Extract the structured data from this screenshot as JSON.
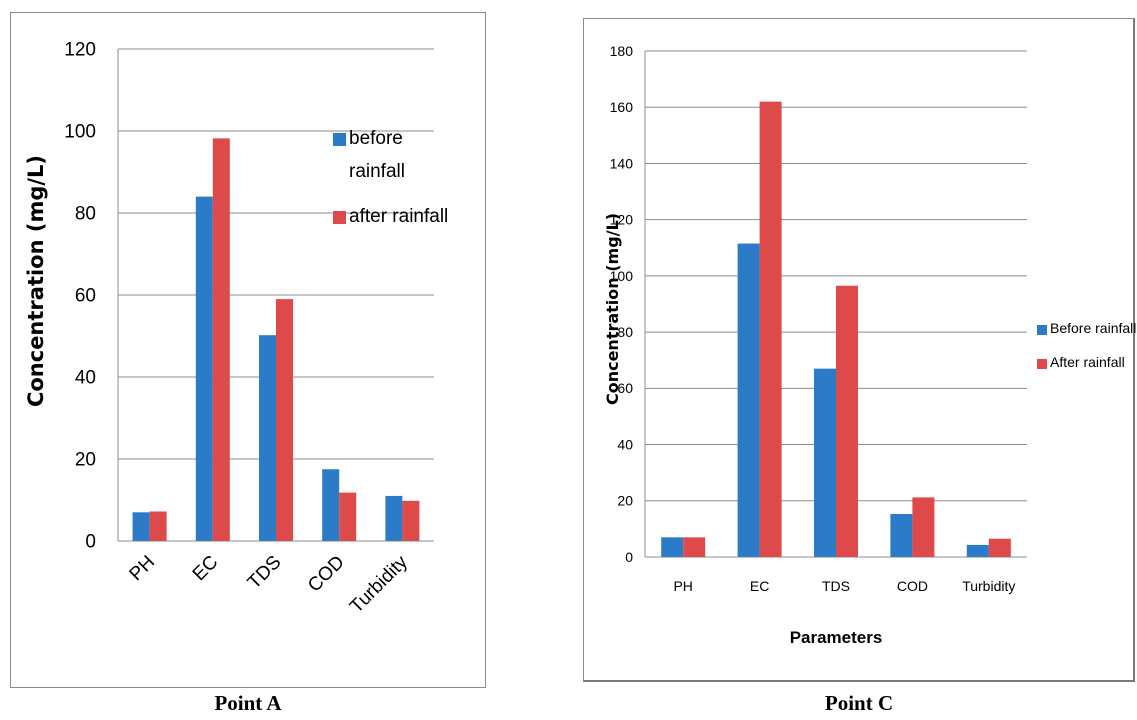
{
  "colors": {
    "before": "#2b7bc9",
    "after": "#de4a49",
    "grid": "#8c8c8c"
  },
  "captions": {
    "a": "Point A",
    "c": "Point C"
  },
  "chart_data": [
    {
      "type": "bar",
      "categories": [
        "PH",
        "EC",
        "TDS",
        "COD",
        "Turbidity"
      ],
      "series": [
        {
          "name": "before rainfall",
          "legend_lines": [
            "before",
            "rainfall"
          ],
          "values": [
            7.0,
            84.0,
            50.2,
            17.5,
            11.0
          ]
        },
        {
          "name": "after rainfall",
          "legend_lines": [
            "after rainfall"
          ],
          "values": [
            7.2,
            98.2,
            59.0,
            11.8,
            9.8
          ]
        }
      ],
      "ylabel": "Concentration (mg/L)",
      "xlabel": "",
      "ylim": [
        0,
        120
      ],
      "yticks": [
        0,
        20,
        40,
        60,
        80,
        100,
        120
      ],
      "grid": true,
      "legend": "right, inside"
    },
    {
      "type": "bar",
      "categories": [
        "PH",
        "EC",
        "TDS",
        "COD",
        "Turbidity"
      ],
      "series": [
        {
          "name": "Before rainfall",
          "legend_lines": [
            "Before rainfall"
          ],
          "values": [
            7.0,
            111.5,
            67.0,
            15.3,
            4.3
          ]
        },
        {
          "name": "After rainfall",
          "legend_lines": [
            "After rainfall"
          ],
          "values": [
            7.0,
            162.0,
            96.5,
            21.2,
            6.5
          ]
        }
      ],
      "ylabel": "Concentration (mg/L)",
      "xlabel": "Parameters",
      "ylim": [
        0,
        180
      ],
      "yticks": [
        0,
        20,
        40,
        60,
        80,
        100,
        120,
        140,
        160,
        180
      ],
      "grid": true,
      "legend": "right"
    }
  ]
}
